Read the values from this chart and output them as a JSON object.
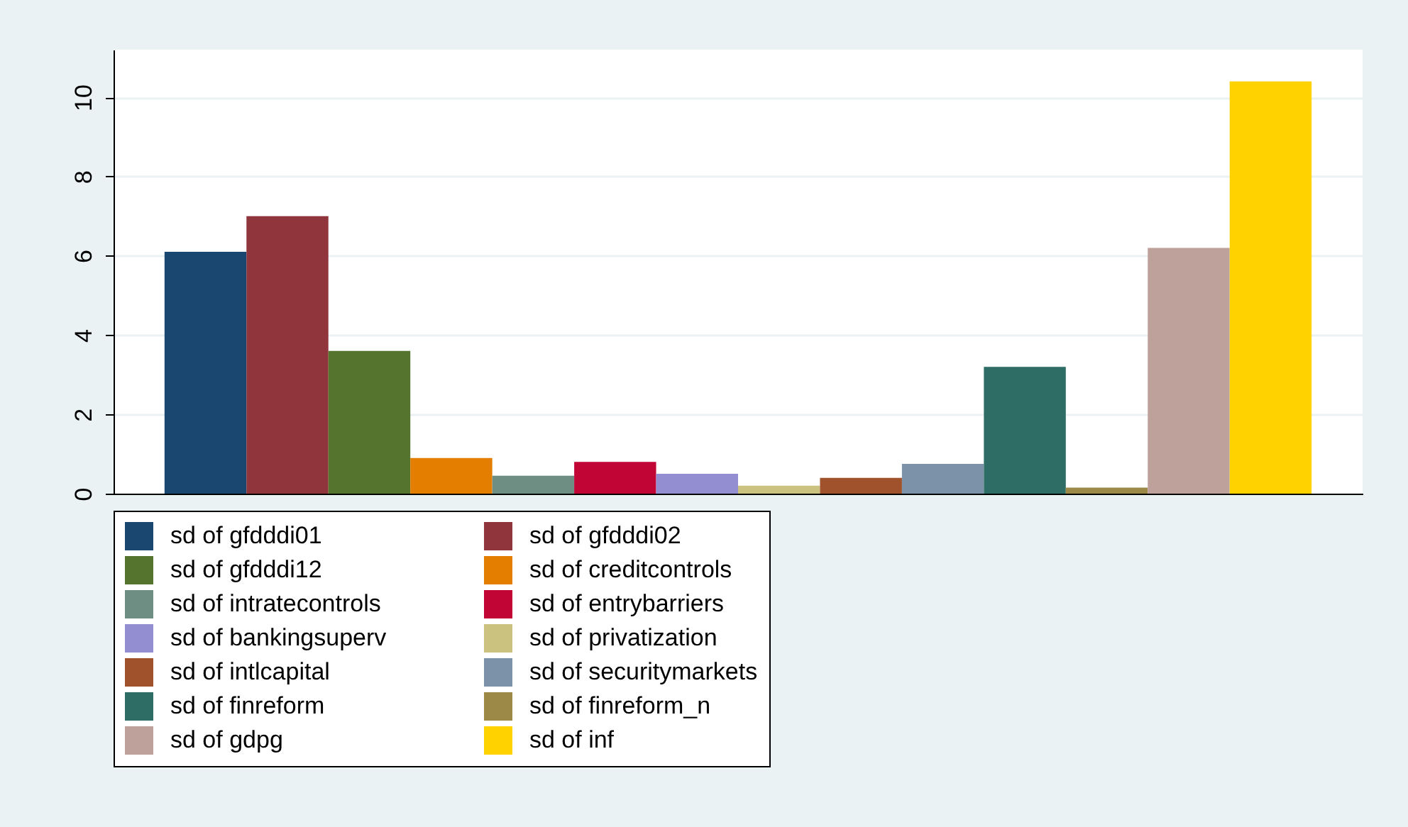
{
  "chart_data": {
    "type": "bar",
    "categories": [
      null
    ],
    "series": [
      {
        "name": "sd of gfdddi01",
        "color": "#1a476f",
        "values": [
          6.1
        ]
      },
      {
        "name": "sd of gfdddi02",
        "color": "#90353b",
        "values": [
          7.0
        ]
      },
      {
        "name": "sd of gfdddi12",
        "color": "#55752f",
        "values": [
          3.6
        ]
      },
      {
        "name": "sd of creditcontrols",
        "color": "#e37e00",
        "values": [
          0.9
        ]
      },
      {
        "name": "sd of intratecontrols",
        "color": "#6e8e84",
        "values": [
          0.45
        ]
      },
      {
        "name": "sd of entrybarriers",
        "color": "#c10534",
        "values": [
          0.8
        ]
      },
      {
        "name": "sd of bankingsuperv",
        "color": "#938dd2",
        "values": [
          0.5
        ]
      },
      {
        "name": "sd of privatization",
        "color": "#cac27e",
        "values": [
          0.2
        ]
      },
      {
        "name": "sd of intlcapital",
        "color": "#a0522d",
        "values": [
          0.4
        ]
      },
      {
        "name": "sd of securitymarkets",
        "color": "#7b92a8",
        "values": [
          0.75
        ]
      },
      {
        "name": "sd of finreform",
        "color": "#2d6d66",
        "values": [
          3.2
        ]
      },
      {
        "name": "sd of finreform_n",
        "color": "#9c8847",
        "values": [
          0.15
        ]
      },
      {
        "name": "sd of gdpg",
        "color": "#bfa19c",
        "values": [
          6.2
        ]
      },
      {
        "name": "sd of inf",
        "color": "#ffd200",
        "values": [
          10.4
        ]
      }
    ],
    "ylim": [
      0,
      11.2
    ],
    "yticks": [
      0,
      2,
      4,
      6,
      8,
      10
    ],
    "grid": "y",
    "legend": "bottom",
    "tick_labels": "y"
  }
}
